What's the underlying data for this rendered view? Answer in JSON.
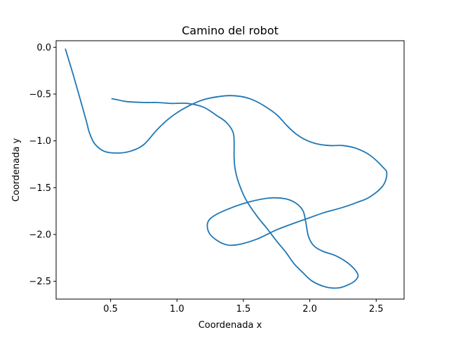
{
  "chart_data": {
    "type": "line",
    "title": "Camino del robot",
    "xlabel": "Coordenada x",
    "ylabel": "Coordenada y",
    "xlim": [
      0.09,
      2.71
    ],
    "ylim": [
      -2.69,
      0.07
    ],
    "grid": false,
    "xticks": [
      {
        "value": 0.5,
        "label": "0.5"
      },
      {
        "value": 1.0,
        "label": "1.0"
      },
      {
        "value": 1.5,
        "label": "1.5"
      },
      {
        "value": 2.0,
        "label": "2.0"
      },
      {
        "value": 2.5,
        "label": "2.5"
      }
    ],
    "yticks": [
      {
        "value": 0.0,
        "label": "0.0"
      },
      {
        "value": -0.5,
        "label": "−0.5"
      },
      {
        "value": -1.0,
        "label": "−1.0"
      },
      {
        "value": -1.5,
        "label": "−1.5"
      },
      {
        "value": -2.0,
        "label": "−2.0"
      },
      {
        "value": -2.5,
        "label": "−2.5"
      }
    ],
    "series": [
      {
        "color": "#1f77b4",
        "x": [
          0.16,
          0.22,
          0.28,
          0.32,
          0.34,
          0.38,
          0.45,
          0.55,
          0.65,
          0.75,
          0.85,
          0.95,
          1.07,
          1.2,
          1.35,
          1.45,
          1.55,
          1.65,
          1.75,
          1.83,
          1.9,
          1.97,
          2.05,
          2.15,
          2.25,
          2.35,
          2.45,
          2.55,
          2.58,
          2.55,
          2.45,
          2.35,
          2.25,
          2.1,
          2.0,
          1.88,
          1.75,
          1.6,
          1.45,
          1.35,
          1.25,
          1.23,
          1.28,
          1.4,
          1.55,
          1.7,
          1.82,
          1.9,
          1.95,
          1.97,
          1.99,
          2.03,
          2.1,
          2.2,
          2.3,
          2.36,
          2.35,
          2.3,
          2.22,
          2.12,
          2.02,
          1.95,
          1.88,
          1.82,
          1.75,
          1.68,
          1.6,
          1.52,
          1.47,
          1.44,
          1.43,
          1.43,
          1.42,
          1.37,
          1.3,
          1.2,
          1.08,
          0.96,
          0.85,
          0.75,
          0.62,
          0.55,
          0.51
        ],
        "y": [
          -0.02,
          -0.3,
          -0.6,
          -0.8,
          -0.91,
          -1.03,
          -1.11,
          -1.13,
          -1.11,
          -1.04,
          -0.88,
          -0.75,
          -0.64,
          -0.56,
          -0.52,
          -0.52,
          -0.55,
          -0.62,
          -0.72,
          -0.84,
          -0.93,
          -0.99,
          -1.03,
          -1.05,
          -1.05,
          -1.08,
          -1.15,
          -1.28,
          -1.35,
          -1.48,
          -1.6,
          -1.66,
          -1.71,
          -1.77,
          -1.82,
          -1.88,
          -1.95,
          -2.05,
          -2.11,
          -2.1,
          -2.0,
          -1.88,
          -1.8,
          -1.72,
          -1.65,
          -1.61,
          -1.62,
          -1.67,
          -1.75,
          -1.87,
          -2.02,
          -2.12,
          -2.18,
          -2.23,
          -2.32,
          -2.42,
          -2.48,
          -2.53,
          -2.57,
          -2.56,
          -2.5,
          -2.41,
          -2.31,
          -2.19,
          -2.07,
          -1.94,
          -1.8,
          -1.63,
          -1.47,
          -1.32,
          -1.18,
          -1.0,
          -0.9,
          -0.8,
          -0.73,
          -0.64,
          -0.6,
          -0.6,
          -0.59,
          -0.59,
          -0.58,
          -0.56,
          -0.55
        ]
      }
    ]
  }
}
